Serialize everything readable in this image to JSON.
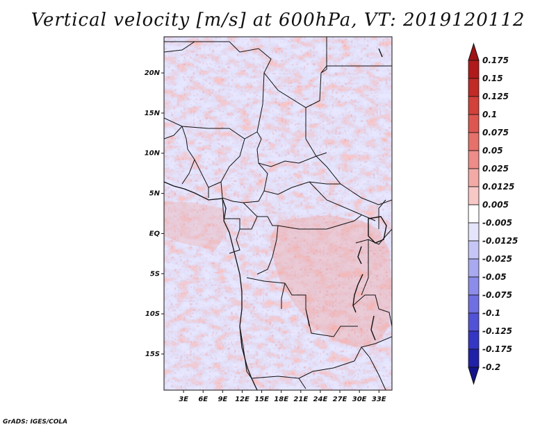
{
  "title": "Vertical velocity [m/s] at 600hPa, VT: 2019120112",
  "credit": "GrADS: IGES/COLA",
  "map": {
    "lat_range": [
      -19.5,
      24.5
    ],
    "lon_range": [
      0,
      35
    ],
    "lat_ticks": [
      {
        "value": 20,
        "label": "20N"
      },
      {
        "value": 15,
        "label": "15N"
      },
      {
        "value": 10,
        "label": "10N"
      },
      {
        "value": 5,
        "label": "5N"
      },
      {
        "value": 0,
        "label": "EQ"
      },
      {
        "value": -5,
        "label": "5S"
      },
      {
        "value": -10,
        "label": "10S"
      },
      {
        "value": -15,
        "label": "15S"
      }
    ],
    "lon_ticks": [
      {
        "value": 3,
        "label": "3E"
      },
      {
        "value": 6,
        "label": "6E"
      },
      {
        "value": 9,
        "label": "9E"
      },
      {
        "value": 12,
        "label": "12E"
      },
      {
        "value": 15,
        "label": "15E"
      },
      {
        "value": 18,
        "label": "18E"
      },
      {
        "value": 21,
        "label": "21E"
      },
      {
        "value": 24,
        "label": "24E"
      },
      {
        "value": 27,
        "label": "27E"
      },
      {
        "value": 30,
        "label": "30E"
      },
      {
        "value": 33,
        "label": "33E"
      }
    ]
  },
  "colorbar": {
    "levels": [
      {
        "label": "0.175",
        "color": "#b01a1a"
      },
      {
        "label": "0.15",
        "color": "#c22a26"
      },
      {
        "label": "0.125",
        "color": "#d2413a"
      },
      {
        "label": "0.1",
        "color": "#dd5750"
      },
      {
        "label": "0.075",
        "color": "#e6706a"
      },
      {
        "label": "0.05",
        "color": "#ed8c88"
      },
      {
        "label": "0.025",
        "color": "#f3aaa7"
      },
      {
        "label": "0.0125",
        "color": "#f8c8c6"
      },
      {
        "label": "0.005",
        "color": "#fce3e2"
      },
      {
        "label": "-0.005",
        "color": "#ffffff"
      },
      {
        "label": "-0.0125",
        "color": "#e4e4fb"
      },
      {
        "label": "-0.025",
        "color": "#c6c6f6"
      },
      {
        "label": "-0.05",
        "color": "#a9a9f0"
      },
      {
        "label": "-0.075",
        "color": "#8c8cea"
      },
      {
        "label": "-0.1",
        "color": "#6f6fe2"
      },
      {
        "label": "-0.125",
        "color": "#5252d6"
      },
      {
        "label": "-0.175",
        "color": "#3636c4"
      },
      {
        "label": "-0.2",
        "color": "#2020a8"
      }
    ],
    "top_cap_color": "#9e1414",
    "bottom_cap_color": "#14148a"
  }
}
